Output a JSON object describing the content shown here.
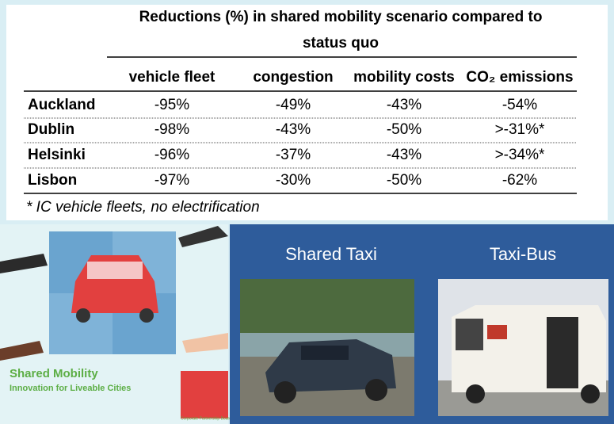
{
  "header": {
    "title_line1": "Reductions (%) in shared mobility scenario compared to",
    "title_line2": "status quo"
  },
  "table": {
    "columns": [
      "vehicle fleet",
      "congestion",
      "mobility costs",
      "CO₂ emissions"
    ],
    "rows": [
      [
        "Auckland",
        "-95%",
        "-49%",
        "-43%",
        "-54%"
      ],
      [
        "Dublin",
        "-98%",
        "-43%",
        "-50%",
        ">-31%*"
      ],
      [
        "Helsinki",
        "-96%",
        "-37%",
        "-43%",
        ">-34%*"
      ],
      [
        "Lisbon",
        "-97%",
        "-30%",
        "-50%",
        "-62%"
      ]
    ]
  },
  "footnote": "* IC vehicle fleets, no electrification",
  "cover": {
    "title": "Shared Mobility",
    "subtitle": "Innovation for Liveable Cities",
    "report": "Corporate Partnership Board Report"
  },
  "panels": [
    {
      "label": "Shared Taxi"
    },
    {
      "label": "Taxi-Bus"
    }
  ]
}
